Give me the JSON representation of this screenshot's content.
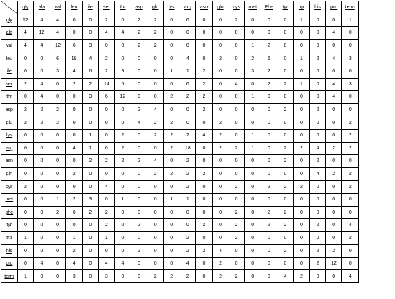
{
  "column_headers": [
    "gly",
    "ala",
    "val",
    "leu",
    "ile",
    "ser",
    "thr",
    "asp",
    "glu",
    "lys",
    "arg",
    "asn",
    "gln",
    "cys",
    "met",
    "Phe",
    "tyr",
    "trp",
    "his",
    "pro",
    "term"
  ],
  "rows": [
    {
      "label": "gly",
      "cells": [
        "12",
        "4",
        "4",
        "0",
        "0",
        "2",
        "0",
        "2",
        "2",
        "0",
        "6",
        "0",
        "0",
        "2",
        "0",
        "0",
        "0",
        "1",
        "0",
        "0",
        "1"
      ]
    },
    {
      "label": "ala",
      "cells": [
        "4",
        "12",
        "4",
        "0",
        "0",
        "4",
        "4",
        "2",
        "2",
        "0",
        "0",
        "0",
        "0",
        "0",
        "0",
        "0",
        "0",
        "0",
        "0",
        "4",
        "0"
      ]
    },
    {
      "label": "val",
      "cells": [
        "4",
        "4",
        "12",
        "6",
        "3",
        "0",
        "0",
        "2",
        "2",
        "0",
        "0",
        "0",
        "0",
        "0",
        "1",
        "2",
        "0",
        "0",
        "0",
        "0",
        "0"
      ]
    },
    {
      "label": "leu",
      "cells": [
        "0",
        "0",
        "6",
        "18",
        "4",
        "2",
        "0",
        "0",
        "0",
        "0",
        "4",
        "0",
        "2",
        "0",
        "2",
        "6",
        "0",
        "1",
        "2",
        "4",
        "3"
      ]
    },
    {
      "label": "ile",
      "cells": [
        "0",
        "0",
        "3",
        "4",
        "6",
        "2",
        "3",
        "0",
        "0",
        "1",
        "1",
        "2",
        "0",
        "0",
        "3",
        "2",
        "0",
        "0",
        "0",
        "0",
        "0"
      ]
    },
    {
      "label": "ser",
      "cells": [
        "2",
        "4",
        "0",
        "2",
        "2",
        "14",
        "6",
        "0",
        "0",
        "0",
        "6",
        "2",
        "0",
        "4",
        "0",
        "2",
        "2",
        "1",
        "0",
        "4",
        "3"
      ]
    },
    {
      "label": "thr",
      "cells": [
        "0",
        "4",
        "0",
        "0",
        "3",
        "6",
        "12",
        "0",
        "0",
        "2",
        "2",
        "2",
        "0",
        "0",
        "1",
        "0",
        "0",
        "0",
        "0",
        "4",
        "0"
      ]
    },
    {
      "label": "asp",
      "cells": [
        "2",
        "2",
        "2",
        "0",
        "0",
        "0",
        "0",
        "2",
        "4",
        "0",
        "0",
        "2",
        "0",
        "0",
        "0",
        "0",
        "2",
        "0",
        "2",
        "0",
        "0"
      ]
    },
    {
      "label": "glu",
      "cells": [
        "2",
        "2",
        "2",
        "0",
        "0",
        "0",
        "0",
        "4",
        "2",
        "2",
        "0",
        "0",
        "2",
        "0",
        "0",
        "0",
        "0",
        "0",
        "0",
        "0",
        "2"
      ]
    },
    {
      "label": "lys",
      "cells": [
        "0",
        "0",
        "0",
        "0",
        "1",
        "0",
        "2",
        "0",
        "2",
        "2",
        "2",
        "4",
        "2",
        "0",
        "1",
        "0",
        "0",
        "0",
        "0",
        "0",
        "2"
      ]
    },
    {
      "label": "arg",
      "cells": [
        "6",
        "0",
        "0",
        "4",
        "1",
        "6",
        "2",
        "0",
        "0",
        "2",
        "18",
        "0",
        "2",
        "2",
        "1",
        "0",
        "2",
        "2",
        "4",
        "2",
        "2"
      ]
    },
    {
      "label": "asn",
      "cells": [
        "0",
        "0",
        "0",
        "0",
        "2",
        "2",
        "2",
        "2",
        "4",
        "0",
        "2",
        "0",
        "0",
        "0",
        "0",
        "0",
        "2",
        "0",
        "2",
        "0",
        "0"
      ]
    },
    {
      "label": "gln",
      "cells": [
        "0",
        "0",
        "0",
        "2",
        "0",
        "0",
        "0",
        "0",
        "2",
        "2",
        "2",
        "2",
        "0",
        "0",
        "0",
        "0",
        "0",
        "0",
        "4",
        "2",
        "2"
      ]
    },
    {
      "label": "cys",
      "cells": [
        "2",
        "0",
        "0",
        "0",
        "0",
        "4",
        "0",
        "0",
        "0",
        "0",
        "2",
        "0",
        "0",
        "2",
        "0",
        "2",
        "2",
        "2",
        "0",
        "0",
        "2"
      ]
    },
    {
      "label": "met",
      "cells": [
        "0",
        "0",
        "1",
        "2",
        "3",
        "0",
        "1",
        "0",
        "0",
        "1",
        "1",
        "0",
        "0",
        "0",
        "0",
        "0",
        "0",
        "0",
        "0",
        "0",
        "0"
      ]
    },
    {
      "label": "phe",
      "cells": [
        "0",
        "0",
        "2",
        "6",
        "2",
        "2",
        "0",
        "0",
        "0",
        "0",
        "0",
        "0",
        "0",
        "2",
        "0",
        "2",
        "2",
        "0",
        "0",
        "0",
        "0"
      ]
    },
    {
      "label": "tyr",
      "cells": [
        "0",
        "0",
        "0",
        "0",
        "0",
        "2",
        "0",
        "2",
        "0",
        "0",
        "0",
        "2",
        "0",
        "2",
        "0",
        "2",
        "2",
        "0",
        "2",
        "0",
        "4"
      ]
    },
    {
      "label": "trp",
      "cells": [
        "1",
        "0",
        "0",
        "1",
        "0",
        "1",
        "0",
        "0",
        "0",
        "0",
        "2",
        "0",
        "0",
        "2",
        "0",
        "0",
        "0",
        "0",
        "0",
        "0",
        "2"
      ]
    },
    {
      "label": "his",
      "cells": [
        "0",
        "0",
        "0",
        "2",
        "0",
        "0",
        "0",
        "2",
        "0",
        "0",
        "2",
        "2",
        "4",
        "0",
        "0",
        "0",
        "2",
        "0",
        "2",
        "2",
        "0"
      ]
    },
    {
      "label": "pro",
      "cells": [
        "0",
        "4",
        "0",
        "4",
        "0",
        "4",
        "4",
        "0",
        "0",
        "0",
        "4",
        "0",
        "2",
        "0",
        "0",
        "0",
        "0",
        "0",
        "2",
        "12",
        "0"
      ]
    },
    {
      "label": "term",
      "cells": [
        "1",
        "0",
        "0",
        "3",
        "0",
        "3",
        "0",
        "0",
        "2",
        "2",
        "2",
        "0",
        "2",
        "2",
        "0",
        "0",
        "4",
        "2",
        "0",
        "0",
        "4"
      ]
    }
  ]
}
